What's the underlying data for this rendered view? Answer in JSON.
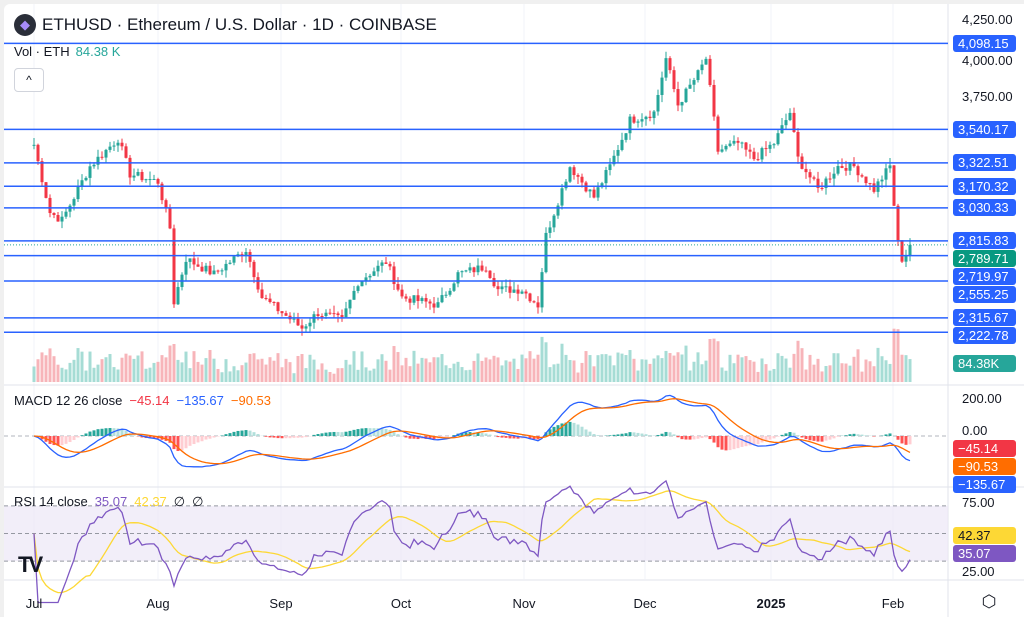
{
  "header": {
    "symbol": "ETHUSD",
    "name": "Ethereum / U.S. Dollar",
    "interval": "1D",
    "exchange": "COINBASE",
    "title": "ETHUSD · Ethereum / U.S. Dollar · 1D · COINBASE"
  },
  "volume_legend": {
    "label": "Vol · ETH",
    "value": "84.38 K"
  },
  "collapse_label": "^",
  "macd_legend": {
    "label": "MACD 12 26 close",
    "hist": "−45.14",
    "macd": "−135.67",
    "signal": "−90.53"
  },
  "rsi_legend": {
    "label": "RSI 14 close",
    "rsi": "35.07",
    "ma": "42.37",
    "na1": "∅",
    "na2": "∅"
  },
  "price_axis": [
    "4,250.00",
    "4,000.00",
    "3,750.00"
  ],
  "price_axis_values": [
    4250,
    4000,
    3750
  ],
  "levels": [
    {
      "value": 4098.15,
      "label": "4,098.15"
    },
    {
      "value": 3540.17,
      "label": "3,540.17"
    },
    {
      "value": 3322.51,
      "label": "3,322.51"
    },
    {
      "value": 3170.32,
      "label": "3,170.32"
    },
    {
      "value": 3030.33,
      "label": "3,030.33"
    },
    {
      "value": 2815.83,
      "label": "2,815.83"
    },
    {
      "value": 2719.97,
      "label": "2,719.97"
    },
    {
      "value": 2555.25,
      "label": "2,555.25"
    },
    {
      "value": 2315.67,
      "label": "2,315.67"
    },
    {
      "value": 2222.78,
      "label": "2,222.78"
    }
  ],
  "last_price": {
    "value": 2789.71,
    "label": "2,789.71"
  },
  "volume_tag": "84.38K",
  "macd_axis": {
    "labels": [
      "200.00",
      "0.00"
    ],
    "tags": {
      "hist": "−45.14",
      "signal": "−90.53",
      "macd": "−135.67"
    }
  },
  "rsi_axis": {
    "labels": [
      "75.00",
      "25.00"
    ],
    "tags": {
      "ma": "42.37",
      "rsi": "35.07"
    }
  },
  "time_axis": [
    "Jul",
    "Aug",
    "Sep",
    "Oct",
    "Nov",
    "Dec",
    "2025",
    "Feb"
  ],
  "tv_logo": "TV",
  "settings_icon": "settings-icon",
  "colors": {
    "up": "#26a69a",
    "down": "#f23645",
    "level": "#2962ff",
    "macd": "#2962ff",
    "signal": "#ff6d00",
    "rsi": "#7e57c2",
    "rsi_ma": "#fdd835"
  },
  "chart_data": {
    "type": "candlestick",
    "symbol": "ETHUSD",
    "interval": "1D",
    "ylim": [
      2100,
      4250
    ],
    "closes": [
      [
        "2024-07-01",
        3440
      ],
      [
        "2024-07-05",
        3000
      ],
      [
        "2024-07-08",
        2950
      ],
      [
        "2024-07-15",
        3300
      ],
      [
        "2024-07-22",
        3480
      ],
      [
        "2024-07-25",
        3250
      ],
      [
        "2024-08-01",
        3200
      ],
      [
        "2024-08-04",
        2900
      ],
      [
        "2024-08-05",
        2420
      ],
      [
        "2024-08-08",
        2700
      ],
      [
        "2024-08-15",
        2600
      ],
      [
        "2024-08-23",
        2760
      ],
      [
        "2024-08-27",
        2450
      ],
      [
        "2024-09-06",
        2250
      ],
      [
        "2024-09-10",
        2350
      ],
      [
        "2024-09-16",
        2300
      ],
      [
        "2024-09-20",
        2550
      ],
      [
        "2024-09-27",
        2680
      ],
      [
        "2024-10-01",
        2450
      ],
      [
        "2024-10-10",
        2400
      ],
      [
        "2024-10-15",
        2600
      ],
      [
        "2024-10-22",
        2650
      ],
      [
        "2024-10-25",
        2500
      ],
      [
        "2024-10-31",
        2500
      ],
      [
        "2024-11-04",
        2400
      ],
      [
        "2024-11-06",
        2850
      ],
      [
        "2024-11-10",
        3150
      ],
      [
        "2024-11-12",
        3300
      ],
      [
        "2024-11-18",
        3100
      ],
      [
        "2024-11-22",
        3300
      ],
      [
        "2024-11-27",
        3600
      ],
      [
        "2024-12-03",
        3650
      ],
      [
        "2024-12-06",
        4000
      ],
      [
        "2024-12-09",
        3700
      ],
      [
        "2024-12-14",
        3900
      ],
      [
        "2024-12-16",
        4000
      ],
      [
        "2024-12-19",
        3400
      ],
      [
        "2024-12-24",
        3450
      ],
      [
        "2024-12-28",
        3350
      ],
      [
        "2025-01-02",
        3450
      ],
      [
        "2025-01-06",
        3650
      ],
      [
        "2025-01-08",
        3350
      ],
      [
        "2025-01-13",
        3150
      ],
      [
        "2025-01-18",
        3300
      ],
      [
        "2025-01-22",
        3300
      ],
      [
        "2025-01-27",
        3150
      ],
      [
        "2025-01-31",
        3300
      ],
      [
        "2025-02-02",
        2800
      ],
      [
        "2025-02-03",
        2700
      ],
      [
        "2025-02-04",
        2730
      ],
      [
        "2025-02-05",
        2789.71
      ]
    ]
  }
}
